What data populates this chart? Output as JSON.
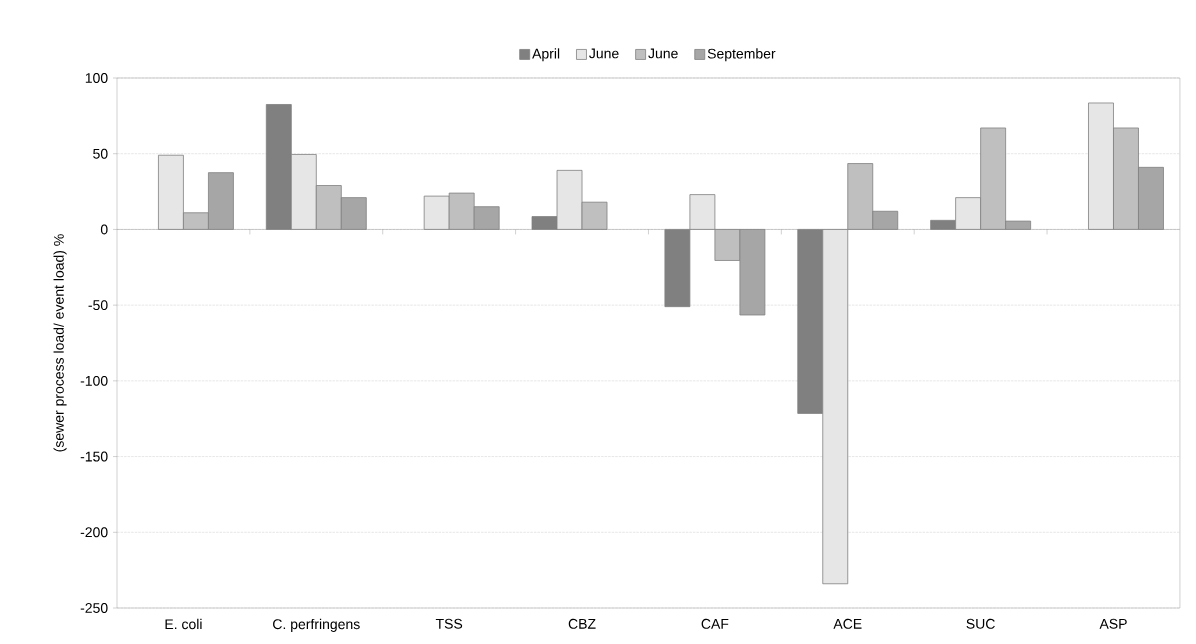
{
  "chart_data": {
    "type": "bar",
    "ylabel": "(sewer process load/ event load) %",
    "categories": [
      "E. coli",
      "C. perfringens",
      "TSS",
      "CBZ",
      "CAF",
      "ACE",
      "SUC",
      "ASP"
    ],
    "series": [
      {
        "name": "April",
        "color": "#808080",
        "values": [
          null,
          82.5,
          null,
          8.5,
          -51,
          -121.5,
          6,
          null
        ]
      },
      {
        "name": "June",
        "color": "#e6e6e6",
        "values": [
          49,
          49.5,
          22,
          39,
          23,
          -234,
          21,
          83.5
        ]
      },
      {
        "name": "June",
        "color": "#bfbfbf",
        "values": [
          11,
          29,
          24,
          18,
          -20.5,
          43.5,
          67,
          67
        ]
      },
      {
        "name": "September",
        "color": "#a6a6a6",
        "values": [
          37.5,
          21,
          15,
          null,
          -56.5,
          12,
          5.5,
          41
        ]
      }
    ],
    "ylim": [
      -250,
      100
    ],
    "yticks": [
      -250,
      -200,
      -150,
      -100,
      -50,
      0,
      50,
      100
    ],
    "grid": "y",
    "legend": "top"
  }
}
